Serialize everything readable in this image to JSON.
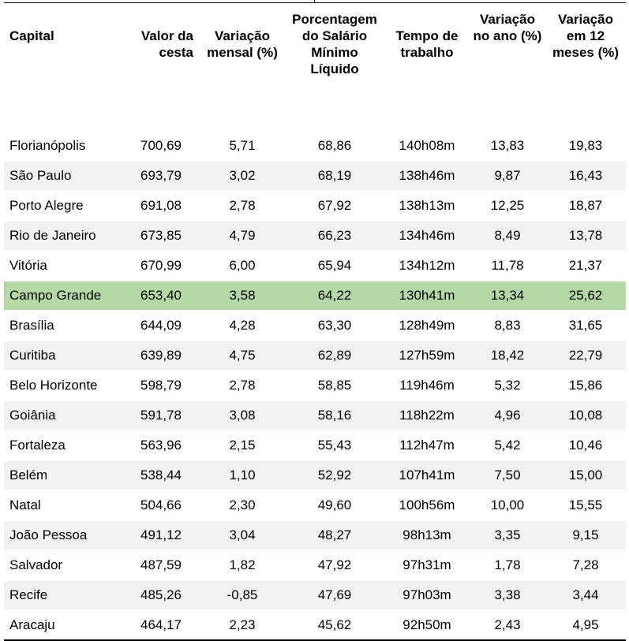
{
  "table": {
    "headers": [
      "Capital",
      "Valor da cesta",
      "Variação mensal (%)",
      "Porcentagem do Salário Mínimo Líquido",
      "Tempo de trabalho",
      "Variação no ano (%)",
      "Variação em 12 meses (%)"
    ],
    "highlight_color": "#b4d9a6",
    "alt_row_color": "#f2f2f2",
    "highlighted_row": "Campo Grande",
    "rows": [
      [
        "Florianópolis",
        "700,69",
        "5,71",
        "68,86",
        "140h08m",
        "13,83",
        "19,83"
      ],
      [
        "São Paulo",
        "693,79",
        "3,02",
        "68,19",
        "138h46m",
        "9,87",
        "16,43"
      ],
      [
        "Porto Alegre",
        "691,08",
        "2,78",
        "67,92",
        "138h13m",
        "12,25",
        "18,87"
      ],
      [
        "Rio de Janeiro",
        "673,85",
        "4,79",
        "66,23",
        "134h46m",
        "8,49",
        "13,78"
      ],
      [
        "Vitória",
        "670,99",
        "6,00",
        "65,94",
        "134h12m",
        "11,78",
        "21,37"
      ],
      [
        "Campo Grande",
        "653,40",
        "3,58",
        "64,22",
        "130h41m",
        "13,34",
        "25,62"
      ],
      [
        "Brasília",
        "644,09",
        "4,28",
        "63,30",
        "128h49m",
        "8,83",
        "31,65"
      ],
      [
        "Curitiba",
        "639,89",
        "4,75",
        "62,89",
        "127h59m",
        "18,42",
        "22,79"
      ],
      [
        "Belo Horizonte",
        "598,79",
        "2,78",
        "58,85",
        "119h46m",
        "5,32",
        "15,86"
      ],
      [
        "Goiânia",
        "591,78",
        "3,08",
        "58,16",
        "118h22m",
        "4,96",
        "10,08"
      ],
      [
        "Fortaleza",
        "563,96",
        "2,15",
        "55,43",
        "112h47m",
        "5,42",
        "10,46"
      ],
      [
        "Belém",
        "538,44",
        "1,10",
        "52,92",
        "107h41m",
        "7,50",
        "15,00"
      ],
      [
        "Natal",
        "504,66",
        "2,30",
        "49,60",
        "100h56m",
        "10,00",
        "15,55"
      ],
      [
        "João Pessoa",
        "491,12",
        "3,04",
        "48,27",
        "98h13m",
        "3,35",
        "9,15"
      ],
      [
        "Salvador",
        "487,59",
        "1,82",
        "47,92",
        "97h31m",
        "1,78",
        "7,28"
      ],
      [
        "Recife",
        "485,26",
        "-0,85",
        "47,69",
        "97h03m",
        "3,38",
        "3,44"
      ],
      [
        "Aracaju",
        "464,17",
        "2,23",
        "45,62",
        "92h50m",
        "2,43",
        "4,95"
      ]
    ]
  }
}
